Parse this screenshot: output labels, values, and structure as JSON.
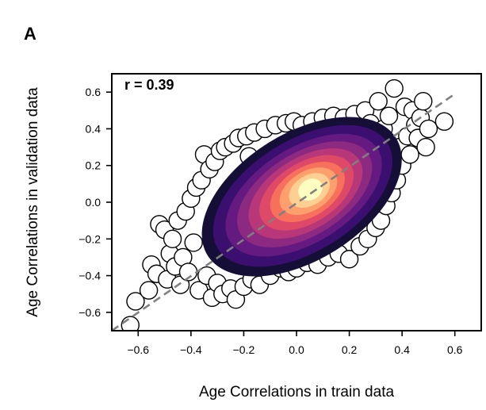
{
  "panel_label": "A",
  "chart_data": {
    "type": "scatter",
    "title": "",
    "xlabel": "Age Correlations in train data",
    "ylabel": "Age Correlations in validation data",
    "xlim": [
      -0.7,
      0.7
    ],
    "ylim": [
      -0.7,
      0.7
    ],
    "xticks": [
      -0.6,
      -0.4,
      -0.2,
      0.0,
      0.2,
      0.4,
      0.6
    ],
    "yticks": [
      -0.6,
      -0.4,
      -0.2,
      0.0,
      0.2,
      0.4,
      0.6
    ],
    "xtick_labels": [
      "−0.6",
      "−0.4",
      "−0.2",
      "0.0",
      "0.2",
      "0.4",
      "0.6"
    ],
    "ytick_labels": [
      "−0.6",
      "−0.4",
      "−0.2",
      "0.0",
      "0.2",
      "0.4",
      "0.6"
    ],
    "annotation": "r = 0.39",
    "grid": false,
    "legend": "none",
    "reference_line": {
      "style": "dashed",
      "color": "#808080",
      "from": [
        -0.7,
        -0.7
      ],
      "to": [
        0.6,
        0.59
      ]
    },
    "marker": {
      "fill": "#ffffff",
      "edge": "#000000"
    },
    "density_overlay": {
      "type": "kde-contour",
      "center": [
        0.02,
        0.03
      ],
      "colormap": [
        "#150e37",
        "#3b0f70",
        "#641a80",
        "#8c2981",
        "#b73779",
        "#de4968",
        "#f7705c",
        "#fe9f6d",
        "#fecf92",
        "#fcfdbf"
      ]
    },
    "points": [
      [
        -0.63,
        -0.67
      ],
      [
        -0.61,
        -0.54
      ],
      [
        -0.56,
        -0.48
      ],
      [
        -0.55,
        -0.34
      ],
      [
        -0.53,
        -0.39
      ],
      [
        -0.52,
        -0.12
      ],
      [
        -0.5,
        -0.15
      ],
      [
        -0.49,
        -0.42
      ],
      [
        -0.48,
        -0.28
      ],
      [
        -0.47,
        -0.2
      ],
      [
        -0.46,
        -0.35
      ],
      [
        -0.45,
        -0.1
      ],
      [
        -0.44,
        -0.45
      ],
      [
        -0.43,
        -0.3
      ],
      [
        -0.42,
        -0.05
      ],
      [
        -0.41,
        -0.38
      ],
      [
        -0.4,
        0.02
      ],
      [
        -0.39,
        -0.22
      ],
      [
        -0.38,
        0.08
      ],
      [
        -0.37,
        -0.48
      ],
      [
        -0.36,
        0.12
      ],
      [
        -0.35,
        0.26
      ],
      [
        -0.34,
        -0.4
      ],
      [
        -0.33,
        0.18
      ],
      [
        -0.32,
        -0.52
      ],
      [
        -0.31,
        0.22
      ],
      [
        -0.3,
        -0.44
      ],
      [
        -0.29,
        0.28
      ],
      [
        -0.28,
        -0.5
      ],
      [
        -0.27,
        0.3
      ],
      [
        -0.25,
        -0.47
      ],
      [
        -0.24,
        0.32
      ],
      [
        -0.23,
        -0.53
      ],
      [
        -0.22,
        0.35
      ],
      [
        -0.2,
        -0.46
      ],
      [
        -0.19,
        0.36
      ],
      [
        -0.17,
        -0.42
      ],
      [
        -0.16,
        0.38
      ],
      [
        -0.14,
        -0.45
      ],
      [
        -0.12,
        0.4
      ],
      [
        -0.1,
        -0.4
      ],
      [
        -0.08,
        0.42
      ],
      [
        -0.06,
        -0.36
      ],
      [
        -0.04,
        0.43
      ],
      [
        -0.03,
        -0.38
      ],
      [
        -0.01,
        0.44
      ],
      [
        0.0,
        -0.36
      ],
      [
        0.02,
        0.42
      ],
      [
        0.04,
        -0.33
      ],
      [
        0.06,
        0.44
      ],
      [
        0.08,
        -0.34
      ],
      [
        0.1,
        0.46
      ],
      [
        0.12,
        -0.3
      ],
      [
        0.14,
        0.47
      ],
      [
        0.16,
        -0.28
      ],
      [
        0.18,
        0.46
      ],
      [
        0.2,
        -0.31
      ],
      [
        0.22,
        0.48
      ],
      [
        0.24,
        -0.24
      ],
      [
        0.26,
        0.5
      ],
      [
        0.27,
        -0.2
      ],
      [
        0.28,
        0.43
      ],
      [
        0.3,
        -0.14
      ],
      [
        0.31,
        0.55
      ],
      [
        0.32,
        -0.1
      ],
      [
        0.33,
        0.4
      ],
      [
        0.34,
        -0.02
      ],
      [
        0.35,
        0.47
      ],
      [
        0.36,
        0.05
      ],
      [
        0.37,
        0.62
      ],
      [
        0.38,
        0.12
      ],
      [
        0.39,
        0.3
      ],
      [
        0.4,
        0.2
      ],
      [
        0.41,
        0.52
      ],
      [
        0.42,
        0.36
      ],
      [
        0.43,
        0.26
      ],
      [
        0.44,
        0.5
      ],
      [
        0.45,
        0.42
      ],
      [
        0.46,
        0.35
      ],
      [
        0.47,
        0.46
      ],
      [
        0.48,
        0.55
      ],
      [
        0.49,
        0.3
      ],
      [
        0.5,
        0.4
      ],
      [
        0.56,
        0.44
      ],
      [
        -0.18,
        0.25
      ],
      [
        -0.2,
        -0.2
      ],
      [
        0.15,
        0.3
      ],
      [
        0.25,
        0.2
      ],
      [
        -0.26,
        0.05
      ],
      [
        -0.28,
        -0.15
      ],
      [
        0.3,
        0.25
      ],
      [
        0.33,
        0.15
      ],
      [
        -0.1,
        -0.3
      ],
      [
        0.1,
        0.35
      ]
    ]
  }
}
